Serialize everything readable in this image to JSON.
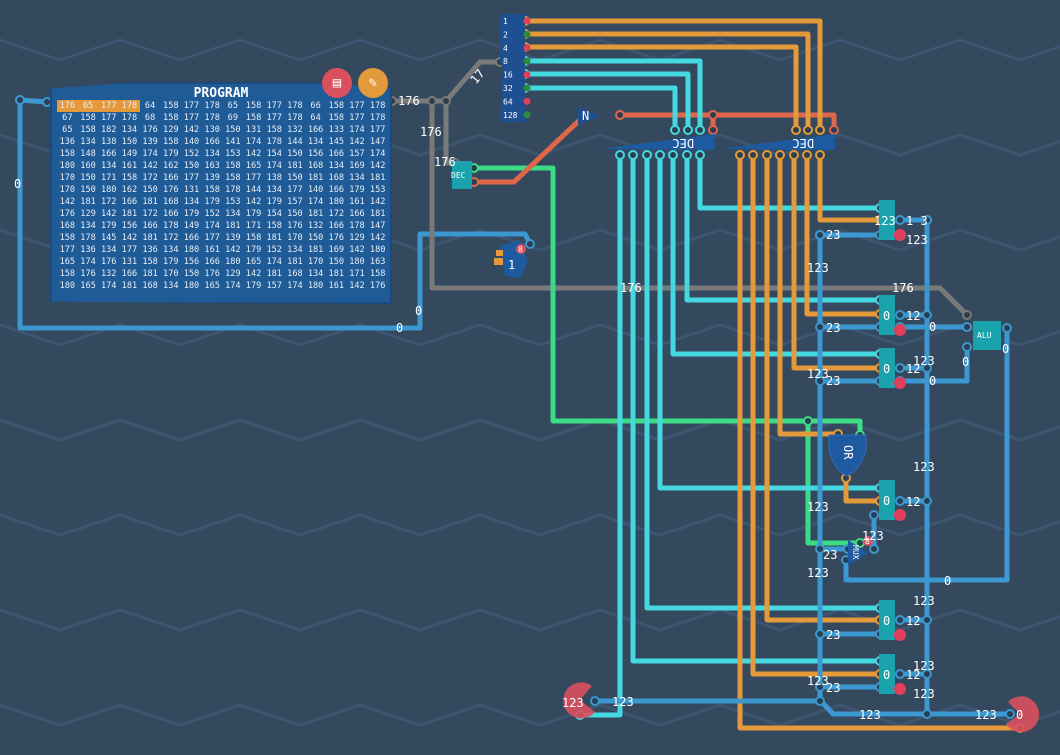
{
  "program": {
    "title": "PROGRAM",
    "highlighted_cells": 4,
    "rows": [
      [
        "176",
        "65",
        "177",
        "178",
        "64",
        "158",
        "177",
        "178",
        "65",
        "158",
        "177",
        "178",
        "66",
        "158",
        "177",
        "178"
      ],
      [
        "67",
        "158",
        "177",
        "178",
        "68",
        "158",
        "177",
        "178",
        "69",
        "158",
        "177",
        "178",
        "64",
        "158",
        "177",
        "178"
      ],
      [
        "65",
        "158",
        "182",
        "134",
        "176",
        "129",
        "142",
        "130",
        "150",
        "131",
        "158",
        "132",
        "166",
        "133",
        "174",
        "177"
      ],
      [
        "136",
        "134",
        "138",
        "150",
        "139",
        "158",
        "140",
        "166",
        "141",
        "174",
        "178",
        "144",
        "134",
        "145",
        "142",
        "147"
      ],
      [
        "158",
        "148",
        "166",
        "149",
        "174",
        "179",
        "152",
        "134",
        "153",
        "142",
        "154",
        "150",
        "156",
        "166",
        "157",
        "174"
      ],
      [
        "180",
        "160",
        "134",
        "161",
        "142",
        "162",
        "150",
        "163",
        "158",
        "165",
        "174",
        "181",
        "168",
        "134",
        "169",
        "142"
      ],
      [
        "170",
        "150",
        "171",
        "158",
        "172",
        "166",
        "177",
        "139",
        "158",
        "177",
        "138",
        "150",
        "181",
        "168",
        "134",
        "181"
      ],
      [
        "170",
        "150",
        "180",
        "162",
        "150",
        "176",
        "131",
        "158",
        "178",
        "144",
        "134",
        "177",
        "140",
        "166",
        "179",
        "153"
      ],
      [
        "142",
        "181",
        "172",
        "166",
        "181",
        "168",
        "134",
        "179",
        "153",
        "142",
        "179",
        "157",
        "174",
        "180",
        "161",
        "142"
      ],
      [
        "176",
        "129",
        "142",
        "181",
        "172",
        "166",
        "179",
        "152",
        "134",
        "179",
        "154",
        "150",
        "181",
        "172",
        "166",
        "181"
      ],
      [
        "168",
        "134",
        "179",
        "156",
        "166",
        "178",
        "149",
        "174",
        "181",
        "171",
        "158",
        "176",
        "132",
        "166",
        "178",
        "147"
      ],
      [
        "158",
        "178",
        "145",
        "142",
        "181",
        "172",
        "166",
        "177",
        "139",
        "158",
        "181",
        "170",
        "150",
        "176",
        "129",
        "142"
      ],
      [
        "177",
        "136",
        "134",
        "177",
        "136",
        "134",
        "180",
        "161",
        "142",
        "179",
        "152",
        "134",
        "181",
        "169",
        "142",
        "180"
      ],
      [
        "165",
        "174",
        "176",
        "131",
        "158",
        "179",
        "156",
        "166",
        "180",
        "165",
        "174",
        "181",
        "170",
        "150",
        "180",
        "163"
      ],
      [
        "158",
        "176",
        "132",
        "166",
        "181",
        "170",
        "150",
        "176",
        "129",
        "142",
        "181",
        "168",
        "134",
        "181",
        "171",
        "158"
      ],
      [
        "180",
        "165",
        "174",
        "181",
        "168",
        "134",
        "180",
        "165",
        "174",
        "179",
        "157",
        "174",
        "180",
        "161",
        "142",
        "176"
      ]
    ],
    "buttons": [
      {
        "icon": "memory-view-icon",
        "color": "#d9505f"
      },
      {
        "icon": "edit-pencil-icon",
        "color": "#e39a3a"
      }
    ]
  },
  "splitter": {
    "pins": [
      "1",
      "2",
      "4",
      "8",
      "16",
      "32",
      "64",
      "128"
    ]
  },
  "components": {
    "not_gate": "N",
    "decoder_small": "DEC",
    "decoder_a": "DEC",
    "decoder_b": "DEC",
    "alu": "ALU",
    "or_gate": "OR",
    "mux": "MUX",
    "mux_badge": "8",
    "counter_badge": "8",
    "counter_value": "1",
    "registers": [
      "123",
      "0",
      "0",
      "0",
      "0",
      "0"
    ],
    "output_left_value": "123",
    "output_right_value": "0"
  },
  "wire_labels": [
    "176",
    "176",
    "176",
    "17",
    "0",
    "0",
    "0",
    "1 3",
    "23",
    "123",
    "123",
    "176",
    "176",
    "12",
    "23",
    "0",
    "0",
    "0",
    "123",
    "12",
    "123",
    "23",
    "0",
    "123",
    "12",
    "123",
    "123",
    "23",
    "123",
    "0",
    "123",
    "12",
    "23",
    "123",
    "12",
    "123",
    "23",
    "123",
    "123",
    "123",
    "123"
  ],
  "colors": {
    "background": "#34495e",
    "wire_blue": "#3b98d0",
    "wire_cyan": "#44d8e0",
    "wire_orange": "#e49a3a",
    "wire_gray": "#7a7a7a",
    "wire_green": "#3ddc84",
    "wire_red": "#e0664a",
    "component": "#1aa3ad",
    "panel": "#1f5b97"
  }
}
